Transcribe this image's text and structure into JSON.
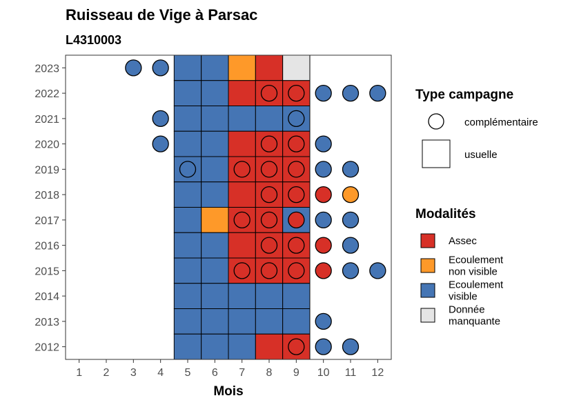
{
  "chart_data": {
    "type": "heatmap",
    "title": "Ruisseau de Vige à Parsac",
    "subtitle": "L4310003",
    "xlabel": "Mois",
    "ylabel": "",
    "x_ticks": [
      1,
      2,
      3,
      4,
      5,
      6,
      7,
      8,
      9,
      10,
      11,
      12
    ],
    "y_ticks": [
      2012,
      2013,
      2014,
      2015,
      2016,
      2017,
      2018,
      2019,
      2020,
      2021,
      2022,
      2023
    ],
    "xlim": [
      0.5,
      12.5
    ],
    "ylim": [
      2011.5,
      2023.5
    ],
    "colors": {
      "Assec": "#d73027",
      "Ecoulement non visible": "#fe9929",
      "Ecoulement visible": "#4575b4",
      "Donnée manquante": "#e5e5e5"
    },
    "legend_type": {
      "title": "Type campagne",
      "entries": [
        "complémentaire",
        "usuelle"
      ],
      "position": "right"
    },
    "legend_modalites": {
      "title": "Modalités",
      "entries": [
        {
          "key": "Assec",
          "lines": [
            "Assec"
          ]
        },
        {
          "key": "Ecoulement non visible",
          "lines": [
            "Ecoulement",
            "non visible"
          ]
        },
        {
          "key": "Ecoulement visible",
          "lines": [
            "Ecoulement",
            "visible"
          ]
        },
        {
          "key": "Donnée manquante",
          "lines": [
            "Donnée",
            "manquante"
          ]
        }
      ],
      "position": "right"
    },
    "usuelle": [
      {
        "year": 2023,
        "values": {
          "5": "Ecoulement visible",
          "6": "Ecoulement visible",
          "7": "Ecoulement non visible",
          "8": "Assec",
          "9": "Donnée manquante"
        }
      },
      {
        "year": 2022,
        "values": {
          "5": "Ecoulement visible",
          "6": "Ecoulement visible",
          "7": "Assec",
          "8": "Assec",
          "9": "Assec"
        }
      },
      {
        "year": 2021,
        "values": {
          "5": "Ecoulement visible",
          "6": "Ecoulement visible",
          "7": "Ecoulement visible",
          "8": "Ecoulement visible",
          "9": "Ecoulement visible"
        }
      },
      {
        "year": 2020,
        "values": {
          "5": "Ecoulement visible",
          "6": "Ecoulement visible",
          "7": "Assec",
          "8": "Assec",
          "9": "Assec"
        }
      },
      {
        "year": 2019,
        "values": {
          "5": "Ecoulement visible",
          "6": "Ecoulement visible",
          "7": "Assec",
          "8": "Assec",
          "9": "Assec"
        }
      },
      {
        "year": 2018,
        "values": {
          "5": "Ecoulement visible",
          "6": "Ecoulement visible",
          "7": "Assec",
          "8": "Assec",
          "9": "Assec"
        }
      },
      {
        "year": 2017,
        "values": {
          "5": "Ecoulement visible",
          "6": "Ecoulement non visible",
          "7": "Assec",
          "8": "Assec",
          "9": "Ecoulement visible"
        }
      },
      {
        "year": 2016,
        "values": {
          "5": "Ecoulement visible",
          "6": "Ecoulement visible",
          "7": "Assec",
          "8": "Assec",
          "9": "Assec"
        }
      },
      {
        "year": 2015,
        "values": {
          "5": "Ecoulement visible",
          "6": "Ecoulement visible",
          "7": "Assec",
          "8": "Assec",
          "9": "Assec"
        }
      },
      {
        "year": 2014,
        "values": {
          "5": "Ecoulement visible",
          "6": "Ecoulement visible",
          "7": "Ecoulement visible",
          "8": "Ecoulement visible",
          "9": "Ecoulement visible"
        }
      },
      {
        "year": 2013,
        "values": {
          "5": "Ecoulement visible",
          "6": "Ecoulement visible",
          "7": "Ecoulement visible",
          "8": "Ecoulement visible",
          "9": "Ecoulement visible"
        }
      },
      {
        "year": 2012,
        "values": {
          "5": "Ecoulement visible",
          "6": "Ecoulement visible",
          "7": "Ecoulement visible",
          "8": "Assec",
          "9": "Assec"
        }
      }
    ],
    "complementaire": [
      {
        "year": 2023,
        "month": 3,
        "value": "Ecoulement visible"
      },
      {
        "year": 2023,
        "month": 4,
        "value": "Ecoulement visible"
      },
      {
        "year": 2022,
        "month": 8,
        "value": "Assec"
      },
      {
        "year": 2022,
        "month": 9,
        "value": "Assec"
      },
      {
        "year": 2022,
        "month": 10,
        "value": "Ecoulement visible"
      },
      {
        "year": 2022,
        "month": 11,
        "value": "Ecoulement visible"
      },
      {
        "year": 2022,
        "month": 12,
        "value": "Ecoulement visible"
      },
      {
        "year": 2021,
        "month": 4,
        "value": "Ecoulement visible"
      },
      {
        "year": 2021,
        "month": 9,
        "value": "Ecoulement visible"
      },
      {
        "year": 2020,
        "month": 4,
        "value": "Ecoulement visible"
      },
      {
        "year": 2020,
        "month": 8,
        "value": "Assec"
      },
      {
        "year": 2020,
        "month": 9,
        "value": "Assec"
      },
      {
        "year": 2020,
        "month": 10,
        "value": "Ecoulement visible"
      },
      {
        "year": 2019,
        "month": 5,
        "value": "Ecoulement visible"
      },
      {
        "year": 2019,
        "month": 7,
        "value": "Assec"
      },
      {
        "year": 2019,
        "month": 8,
        "value": "Assec"
      },
      {
        "year": 2019,
        "month": 9,
        "value": "Assec"
      },
      {
        "year": 2019,
        "month": 10,
        "value": "Ecoulement visible"
      },
      {
        "year": 2019,
        "month": 11,
        "value": "Ecoulement visible"
      },
      {
        "year": 2018,
        "month": 8,
        "value": "Assec"
      },
      {
        "year": 2018,
        "month": 9,
        "value": "Assec"
      },
      {
        "year": 2018,
        "month": 10,
        "value": "Assec"
      },
      {
        "year": 2018,
        "month": 11,
        "value": "Ecoulement non visible"
      },
      {
        "year": 2017,
        "month": 7,
        "value": "Assec"
      },
      {
        "year": 2017,
        "month": 8,
        "value": "Assec"
      },
      {
        "year": 2017,
        "month": 9,
        "value": "Assec"
      },
      {
        "year": 2017,
        "month": 10,
        "value": "Ecoulement visible"
      },
      {
        "year": 2017,
        "month": 11,
        "value": "Ecoulement visible"
      },
      {
        "year": 2016,
        "month": 8,
        "value": "Assec"
      },
      {
        "year": 2016,
        "month": 9,
        "value": "Assec"
      },
      {
        "year": 2016,
        "month": 10,
        "value": "Assec"
      },
      {
        "year": 2016,
        "month": 11,
        "value": "Ecoulement visible"
      },
      {
        "year": 2015,
        "month": 7,
        "value": "Assec"
      },
      {
        "year": 2015,
        "month": 8,
        "value": "Assec"
      },
      {
        "year": 2015,
        "month": 9,
        "value": "Assec"
      },
      {
        "year": 2015,
        "month": 10,
        "value": "Assec"
      },
      {
        "year": 2015,
        "month": 11,
        "value": "Ecoulement visible"
      },
      {
        "year": 2015,
        "month": 12,
        "value": "Ecoulement visible"
      },
      {
        "year": 2013,
        "month": 10,
        "value": "Ecoulement visible"
      },
      {
        "year": 2012,
        "month": 9,
        "value": "Assec"
      },
      {
        "year": 2012,
        "month": 10,
        "value": "Ecoulement visible"
      },
      {
        "year": 2012,
        "month": 11,
        "value": "Ecoulement visible"
      }
    ]
  }
}
